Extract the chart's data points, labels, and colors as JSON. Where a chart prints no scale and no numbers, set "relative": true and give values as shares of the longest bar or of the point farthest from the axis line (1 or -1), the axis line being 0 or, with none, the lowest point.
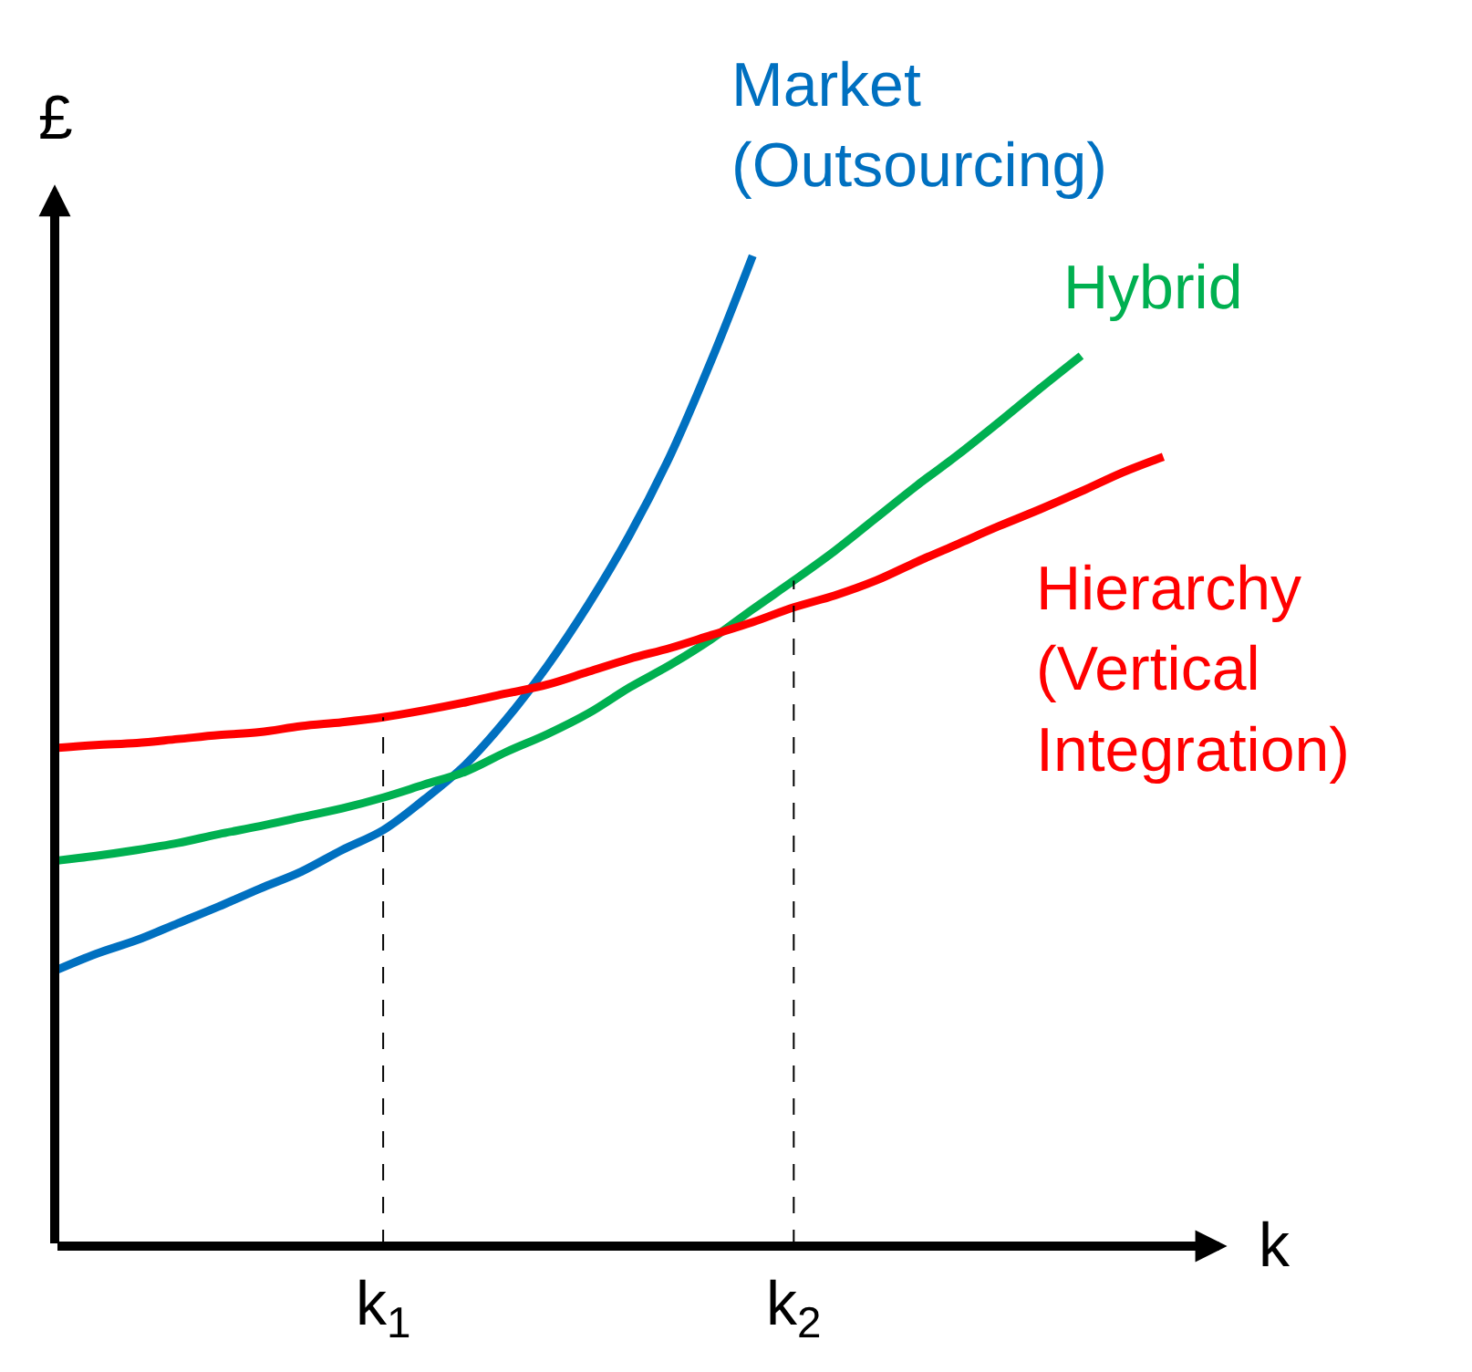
{
  "chart_data": {
    "type": "line",
    "relative": true,
    "xlabel": "k",
    "ylabel": "£",
    "grid": false,
    "legend": false,
    "marker": "none",
    "line_style": "solid",
    "categories": [
      null,
      null,
      null,
      null,
      null,
      null,
      null,
      null,
      "k$_{1}$",
      null,
      null,
      null,
      null,
      null,
      null,
      null,
      null,
      null,
      "k$_{2}$",
      null,
      null,
      null,
      null,
      null,
      null,
      null,
      null,
      null
    ],
    "ref_lines": [
      {
        "axis": "x",
        "value": "k$_{1}$",
        "line_style": "dashed",
        "color": "#000000"
      },
      {
        "axis": "x",
        "value": "k$_{2}$",
        "line_style": "dashed",
        "color": "#000000"
      }
    ],
    "series": [
      {
        "name": "Market\n(Outsourcing)",
        "color": "#0070c0",
        "values": [
          0.278,
          0.295,
          0.309,
          0.326,
          0.343,
          0.361,
          0.378,
          0.4,
          0.42,
          0.451,
          0.486,
          0.532,
          0.586,
          0.648,
          0.718,
          0.799,
          0.895,
          1,
          null,
          null,
          null,
          null,
          null,
          null,
          null,
          null,
          null,
          null
        ]
      },
      {
        "name": "Hybrid",
        "color": "#00b050",
        "values": [
          0.389,
          0.394,
          0.4,
          0.407,
          0.416,
          0.424,
          0.433,
          0.442,
          0.453,
          0.466,
          0.479,
          0.499,
          0.517,
          0.538,
          0.564,
          0.587,
          0.613,
          0.643,
          0.672,
          0.702,
          0.735,
          0.768,
          0.799,
          0.832,
          0.866,
          0.899,
          null,
          null
        ]
      },
      {
        "name": "Hierarchy\n(Vertical\nIntegration)",
        "color": "#ff0000",
        "values": [
          0.503,
          0.506,
          0.508,
          0.512,
          0.516,
          0.519,
          0.525,
          0.529,
          0.534,
          0.541,
          0.549,
          0.558,
          0.567,
          0.58,
          0.593,
          0.604,
          0.617,
          0.63,
          0.645,
          0.657,
          0.672,
          0.691,
          0.709,
          0.727,
          0.744,
          0.762,
          0.781,
          0.797
        ]
      }
    ]
  }
}
